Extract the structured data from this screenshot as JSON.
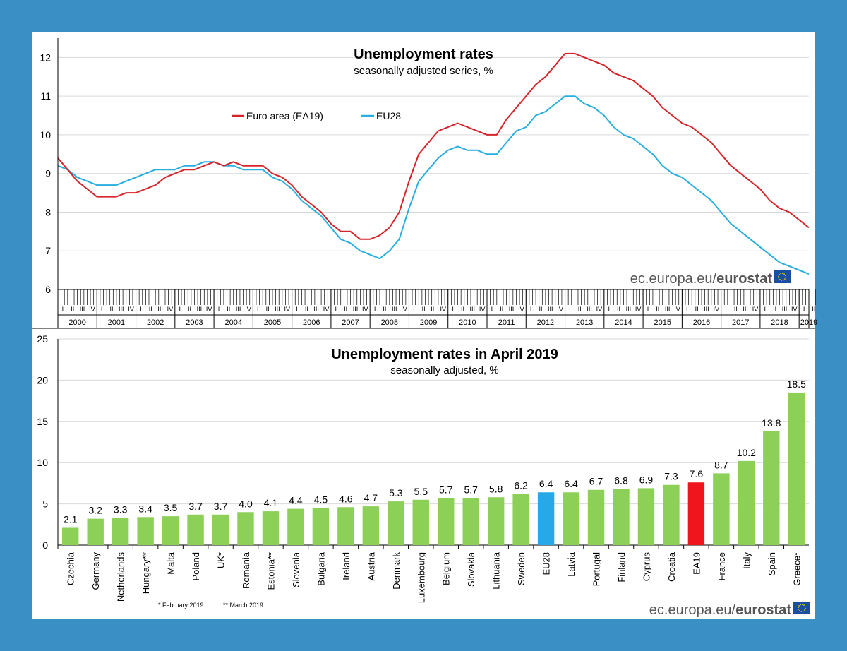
{
  "chart_data": [
    {
      "type": "line",
      "title": "Unemployment rates",
      "subtitle": "seasonally adjusted series, %",
      "ylim": [
        6,
        12.5
      ],
      "yticks": [
        6,
        7,
        8,
        9,
        10,
        11,
        12
      ],
      "grid": true,
      "legend_position": "top-left",
      "x_quarter_labels": [
        "I",
        "II",
        "III",
        "IV"
      ],
      "x_years": [
        "2000",
        "2001",
        "2002",
        "2003",
        "2004",
        "2005",
        "2006",
        "2007",
        "2008",
        "2009",
        "2010",
        "2011",
        "2012",
        "2013",
        "2014",
        "2015",
        "2016",
        "2017",
        "2018",
        "2019"
      ],
      "x_start": "2000-01",
      "x_end": "2019-04",
      "series": [
        {
          "name": "Euro area (EA19)",
          "color": "#d6242b",
          "points": [
            [
              "2000-01",
              9.4
            ],
            [
              "2000-04",
              9.1
            ],
            [
              "2000-07",
              8.8
            ],
            [
              "2000-10",
              8.6
            ],
            [
              "2001-01",
              8.4
            ],
            [
              "2001-04",
              8.4
            ],
            [
              "2001-07",
              8.4
            ],
            [
              "2001-10",
              8.5
            ],
            [
              "2002-01",
              8.5
            ],
            [
              "2002-04",
              8.6
            ],
            [
              "2002-07",
              8.7
            ],
            [
              "2002-10",
              8.9
            ],
            [
              "2003-01",
              9.0
            ],
            [
              "2003-04",
              9.1
            ],
            [
              "2003-07",
              9.1
            ],
            [
              "2003-10",
              9.2
            ],
            [
              "2004-01",
              9.3
            ],
            [
              "2004-04",
              9.2
            ],
            [
              "2004-07",
              9.3
            ],
            [
              "2004-10",
              9.2
            ],
            [
              "2005-01",
              9.2
            ],
            [
              "2005-04",
              9.2
            ],
            [
              "2005-07",
              9.0
            ],
            [
              "2005-10",
              8.9
            ],
            [
              "2006-01",
              8.7
            ],
            [
              "2006-04",
              8.4
            ],
            [
              "2006-07",
              8.2
            ],
            [
              "2006-10",
              8.0
            ],
            [
              "2007-01",
              7.7
            ],
            [
              "2007-04",
              7.5
            ],
            [
              "2007-07",
              7.5
            ],
            [
              "2007-10",
              7.3
            ],
            [
              "2008-01",
              7.3
            ],
            [
              "2008-04",
              7.4
            ],
            [
              "2008-07",
              7.6
            ],
            [
              "2008-10",
              8.0
            ],
            [
              "2009-01",
              8.8
            ],
            [
              "2009-04",
              9.5
            ],
            [
              "2009-07",
              9.8
            ],
            [
              "2009-10",
              10.1
            ],
            [
              "2010-01",
              10.2
            ],
            [
              "2010-04",
              10.3
            ],
            [
              "2010-07",
              10.2
            ],
            [
              "2010-10",
              10.1
            ],
            [
              "2011-01",
              10.0
            ],
            [
              "2011-04",
              10.0
            ],
            [
              "2011-07",
              10.4
            ],
            [
              "2011-10",
              10.7
            ],
            [
              "2012-01",
              11.0
            ],
            [
              "2012-04",
              11.3
            ],
            [
              "2012-07",
              11.5
            ],
            [
              "2012-10",
              11.8
            ],
            [
              "2013-01",
              12.1
            ],
            [
              "2013-04",
              12.1
            ],
            [
              "2013-07",
              12.0
            ],
            [
              "2013-10",
              11.9
            ],
            [
              "2014-01",
              11.8
            ],
            [
              "2014-04",
              11.6
            ],
            [
              "2014-07",
              11.5
            ],
            [
              "2014-10",
              11.4
            ],
            [
              "2015-01",
              11.2
            ],
            [
              "2015-04",
              11.0
            ],
            [
              "2015-07",
              10.7
            ],
            [
              "2015-10",
              10.5
            ],
            [
              "2016-01",
              10.3
            ],
            [
              "2016-04",
              10.2
            ],
            [
              "2016-07",
              10.0
            ],
            [
              "2016-10",
              9.8
            ],
            [
              "2017-01",
              9.5
            ],
            [
              "2017-04",
              9.2
            ],
            [
              "2017-07",
              9.0
            ],
            [
              "2017-10",
              8.8
            ],
            [
              "2018-01",
              8.6
            ],
            [
              "2018-04",
              8.3
            ],
            [
              "2018-07",
              8.1
            ],
            [
              "2018-10",
              8.0
            ],
            [
              "2019-01",
              7.8
            ],
            [
              "2019-04",
              7.6
            ]
          ]
        },
        {
          "name": "EU28",
          "color": "#29aee0",
          "points": [
            [
              "2000-01",
              9.2
            ],
            [
              "2000-04",
              9.1
            ],
            [
              "2000-07",
              8.9
            ],
            [
              "2000-10",
              8.8
            ],
            [
              "2001-01",
              8.7
            ],
            [
              "2001-04",
              8.7
            ],
            [
              "2001-07",
              8.7
            ],
            [
              "2001-10",
              8.8
            ],
            [
              "2002-01",
              8.9
            ],
            [
              "2002-04",
              9.0
            ],
            [
              "2002-07",
              9.1
            ],
            [
              "2002-10",
              9.1
            ],
            [
              "2003-01",
              9.1
            ],
            [
              "2003-04",
              9.2
            ],
            [
              "2003-07",
              9.2
            ],
            [
              "2003-10",
              9.3
            ],
            [
              "2004-01",
              9.3
            ],
            [
              "2004-04",
              9.2
            ],
            [
              "2004-07",
              9.2
            ],
            [
              "2004-10",
              9.1
            ],
            [
              "2005-01",
              9.1
            ],
            [
              "2005-04",
              9.1
            ],
            [
              "2005-07",
              8.9
            ],
            [
              "2005-10",
              8.8
            ],
            [
              "2006-01",
              8.6
            ],
            [
              "2006-04",
              8.3
            ],
            [
              "2006-07",
              8.1
            ],
            [
              "2006-10",
              7.9
            ],
            [
              "2007-01",
              7.6
            ],
            [
              "2007-04",
              7.3
            ],
            [
              "2007-07",
              7.2
            ],
            [
              "2007-10",
              7.0
            ],
            [
              "2008-01",
              6.9
            ],
            [
              "2008-04",
              6.8
            ],
            [
              "2008-07",
              7.0
            ],
            [
              "2008-10",
              7.3
            ],
            [
              "2009-01",
              8.1
            ],
            [
              "2009-04",
              8.8
            ],
            [
              "2009-07",
              9.1
            ],
            [
              "2009-10",
              9.4
            ],
            [
              "2010-01",
              9.6
            ],
            [
              "2010-04",
              9.7
            ],
            [
              "2010-07",
              9.6
            ],
            [
              "2010-10",
              9.6
            ],
            [
              "2011-01",
              9.5
            ],
            [
              "2011-04",
              9.5
            ],
            [
              "2011-07",
              9.8
            ],
            [
              "2011-10",
              10.1
            ],
            [
              "2012-01",
              10.2
            ],
            [
              "2012-04",
              10.5
            ],
            [
              "2012-07",
              10.6
            ],
            [
              "2012-10",
              10.8
            ],
            [
              "2013-01",
              11.0
            ],
            [
              "2013-04",
              11.0
            ],
            [
              "2013-07",
              10.8
            ],
            [
              "2013-10",
              10.7
            ],
            [
              "2014-01",
              10.5
            ],
            [
              "2014-04",
              10.2
            ],
            [
              "2014-07",
              10.0
            ],
            [
              "2014-10",
              9.9
            ],
            [
              "2015-01",
              9.7
            ],
            [
              "2015-04",
              9.5
            ],
            [
              "2015-07",
              9.2
            ],
            [
              "2015-10",
              9.0
            ],
            [
              "2016-01",
              8.9
            ],
            [
              "2016-04",
              8.7
            ],
            [
              "2016-07",
              8.5
            ],
            [
              "2016-10",
              8.3
            ],
            [
              "2017-01",
              8.0
            ],
            [
              "2017-04",
              7.7
            ],
            [
              "2017-07",
              7.5
            ],
            [
              "2017-10",
              7.3
            ],
            [
              "2018-01",
              7.1
            ],
            [
              "2018-04",
              6.9
            ],
            [
              "2018-07",
              6.7
            ],
            [
              "2018-10",
              6.6
            ],
            [
              "2019-01",
              6.5
            ],
            [
              "2019-04",
              6.4
            ]
          ]
        }
      ]
    },
    {
      "type": "bar",
      "title": "Unemployment rates in April 2019",
      "subtitle": "seasonally adjusted, %",
      "ylim": [
        0,
        25
      ],
      "yticks": [
        0,
        5,
        10,
        15,
        20,
        25
      ],
      "grid": true,
      "categories": [
        "Czechia",
        "Germany",
        "Netherlands",
        "Hungary**",
        "Malta",
        "Poland",
        "UK*",
        "Romania",
        "Estonia**",
        "Slovenia",
        "Bulgaria",
        "Ireland",
        "Austria",
        "Denmark",
        "Luxembourg",
        "Belgium",
        "Slovakia",
        "Lithuania",
        "Sweden",
        "EU28",
        "Latvia",
        "Portugal",
        "Finland",
        "Cyprus",
        "Croatia",
        "EA19",
        "France",
        "Italy",
        "Spain",
        "Greece*"
      ],
      "values": [
        2.1,
        3.2,
        3.3,
        3.4,
        3.5,
        3.7,
        3.7,
        4.0,
        4.1,
        4.4,
        4.5,
        4.6,
        4.7,
        5.3,
        5.5,
        5.7,
        5.7,
        5.8,
        6.2,
        6.4,
        6.4,
        6.7,
        6.8,
        6.9,
        7.3,
        7.6,
        8.7,
        10.2,
        13.8,
        18.5
      ],
      "value_labels": [
        "2.1",
        "3.2",
        "3.3",
        "3.4",
        "3.5",
        "3.7",
        "3.7",
        "4.0",
        "4.1",
        "4.4",
        "4.5",
        "4.6",
        "4.7",
        "5.3",
        "5.5",
        "5.7",
        "5.7",
        "5.8",
        "6.2",
        "6.4",
        "6.4",
        "6.7",
        "6.8",
        "6.9",
        "7.3",
        "7.6",
        "8.7",
        "10.2",
        "13.8",
        "18.5"
      ],
      "bar_color": "#8cd058",
      "highlight": {
        "EU28": "#26a9e6",
        "EA19": "#f0141c"
      },
      "footnotes": [
        "* February 2019",
        "** March 2019"
      ]
    }
  ],
  "source_label": "ec.europa.eu/",
  "source_brand": "eurostat",
  "colors": {
    "background": "#3a8fc4",
    "eu_flag": "#1a4fa0",
    "eu_stars": "#ffd400"
  }
}
